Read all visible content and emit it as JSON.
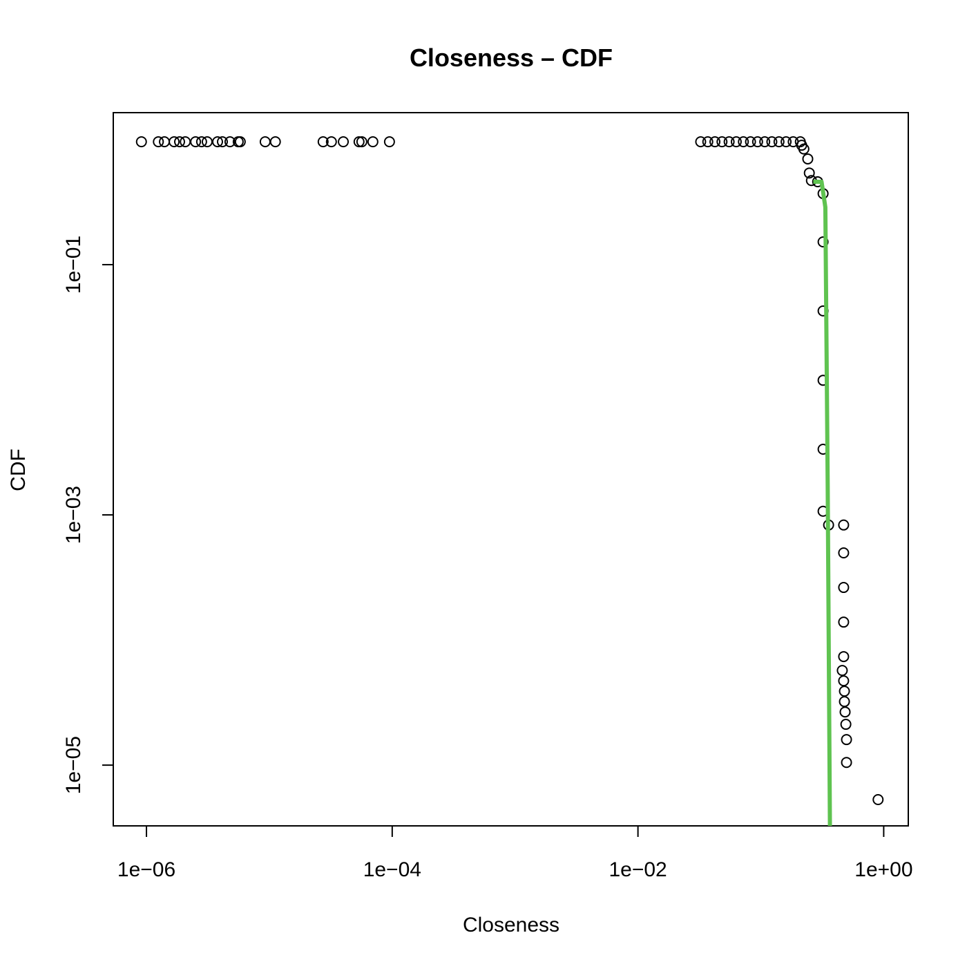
{
  "chart_data": {
    "type": "scatter",
    "title": "Closeness – CDF",
    "x_label": "Closeness",
    "y_label": "CDF",
    "log_x": true,
    "log_y": true,
    "xlim": [
      5.37e-07,
      1.585
    ],
    "ylim": [
      3.27e-06,
      1.64
    ],
    "xticks": [
      {
        "value": 1e-06,
        "label": "1e−06"
      },
      {
        "value": 0.0001,
        "label": "1e−04"
      },
      {
        "value": 0.01,
        "label": "1e−02"
      },
      {
        "value": 1,
        "label": "1e+00"
      }
    ],
    "yticks": [
      {
        "value": 1e-05,
        "label": "1e−05"
      },
      {
        "value": 0.001,
        "label": "1e−03"
      },
      {
        "value": 0.1,
        "label": "1e−01"
      }
    ],
    "series": [
      {
        "type": "scatter",
        "color": "#000000",
        "x": [
          9.1e-07,
          1.25e-06,
          1.4e-06,
          1.68e-06,
          1.86e-06,
          2.07e-06,
          2.51e-06,
          2.81e-06,
          3.12e-06,
          3.79e-06,
          4.15e-06,
          4.78e-06,
          5.58e-06,
          5.8e-06,
          9.25e-06,
          1.12e-05,
          2.74e-05,
          3.2e-05,
          4e-05,
          5.37e-05,
          5.66e-05,
          6.96e-05,
          9.5e-05,
          0.0324,
          0.037,
          0.0423,
          0.0483,
          0.0552,
          0.0631,
          0.0721,
          0.0824,
          0.0941,
          0.1076,
          0.1229,
          0.1405,
          0.1605,
          0.1834,
          0.2096,
          0.215,
          0.224,
          0.241,
          0.248,
          0.258,
          0.29,
          0.321,
          0.321,
          0.321,
          0.321,
          0.321,
          0.321,
          0.356,
          0.472,
          0.472,
          0.472,
          0.472,
          0.472,
          0.46,
          0.472,
          0.479,
          0.479,
          0.485,
          0.492,
          0.498,
          0.498,
          0.9
        ],
        "values": [
          0.96,
          0.96,
          0.96,
          0.96,
          0.96,
          0.96,
          0.96,
          0.96,
          0.96,
          0.96,
          0.96,
          0.96,
          0.96,
          0.96,
          0.96,
          0.96,
          0.96,
          0.96,
          0.96,
          0.96,
          0.96,
          0.96,
          0.96,
          0.96,
          0.96,
          0.96,
          0.96,
          0.96,
          0.96,
          0.96,
          0.96,
          0.96,
          0.96,
          0.96,
          0.96,
          0.96,
          0.96,
          0.96,
          0.9,
          0.84,
          0.7,
          0.54,
          0.47,
          0.46,
          0.37,
          0.152,
          0.0427,
          0.0119,
          0.00335,
          0.00107,
          0.00083,
          0.00083,
          0.000497,
          0.000263,
          0.000139,
          7.37e-05,
          5.71e-05,
          4.72e-05,
          3.9e-05,
          3.22e-05,
          2.66e-05,
          2.12e-05,
          1.6e-05,
          1.05e-05,
          5.3e-06
        ]
      },
      {
        "type": "line",
        "color": "#d9534f",
        "width": 1.5,
        "x": [
          0.312,
          0.335,
          0.37
        ],
        "values": [
          0.46,
          0.288,
          3.27e-06
        ]
      },
      {
        "type": "line",
        "color": "#5fc350",
        "width": 6,
        "x": [
          0.267,
          0.312,
          0.335,
          0.35,
          0.365
        ],
        "values": [
          0.46,
          0.46,
          0.288,
          0.00177,
          3.27e-06
        ]
      }
    ]
  }
}
